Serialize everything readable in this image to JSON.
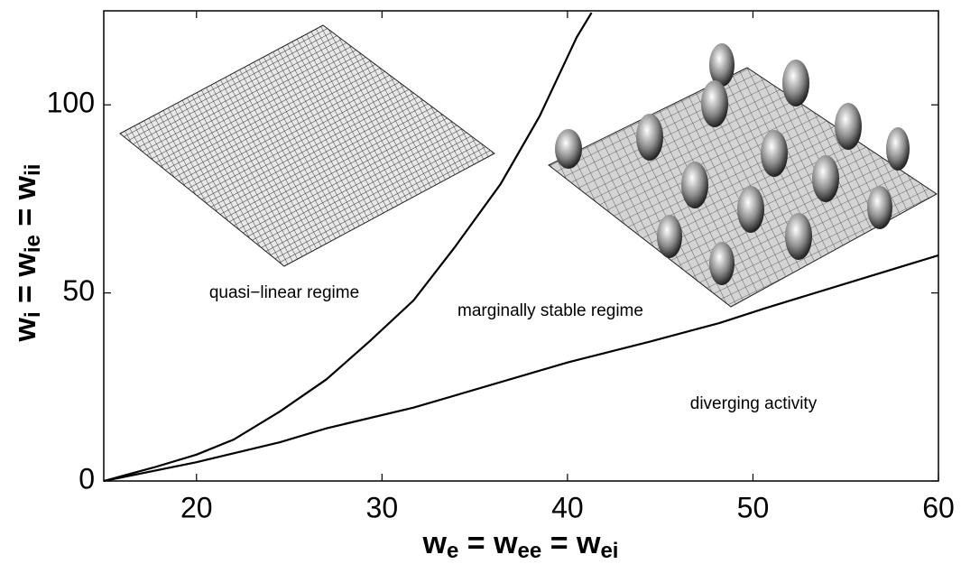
{
  "chart_data": {
    "type": "line",
    "xlabel_parts": [
      "w",
      "e",
      " = w",
      "ee",
      " = w",
      "ei"
    ],
    "ylabel_parts": [
      "w",
      "i",
      " = w",
      "ie",
      " = w",
      "ii"
    ],
    "annotations": [
      "quasi−linear regime",
      "marginally stable regime",
      "diverging activity"
    ],
    "xlim": [
      15,
      60
    ],
    "ylim": [
      0,
      125
    ],
    "xticks": [
      20,
      30,
      40,
      50,
      60
    ],
    "yticks": [
      0,
      50,
      100
    ],
    "series": [
      {
        "color": "#000000",
        "x": [
          15,
          17.7,
          20,
          22,
          24.5,
          27,
          29.3,
          31.7,
          33.9,
          36.4,
          38.5,
          40.5,
          41.3
        ],
        "values": [
          0,
          3.6,
          7,
          11,
          18.5,
          27,
          37,
          48,
          62,
          79,
          97,
          118,
          124.5
        ]
      },
      {
        "color": "#000000",
        "x": [
          15,
          20,
          24.5,
          27,
          31.7,
          40,
          44.4,
          48.2,
          50.7,
          60
        ],
        "values": [
          0,
          5,
          10.3,
          14,
          19.5,
          31.5,
          37,
          42,
          46,
          60
        ]
      }
    ]
  }
}
